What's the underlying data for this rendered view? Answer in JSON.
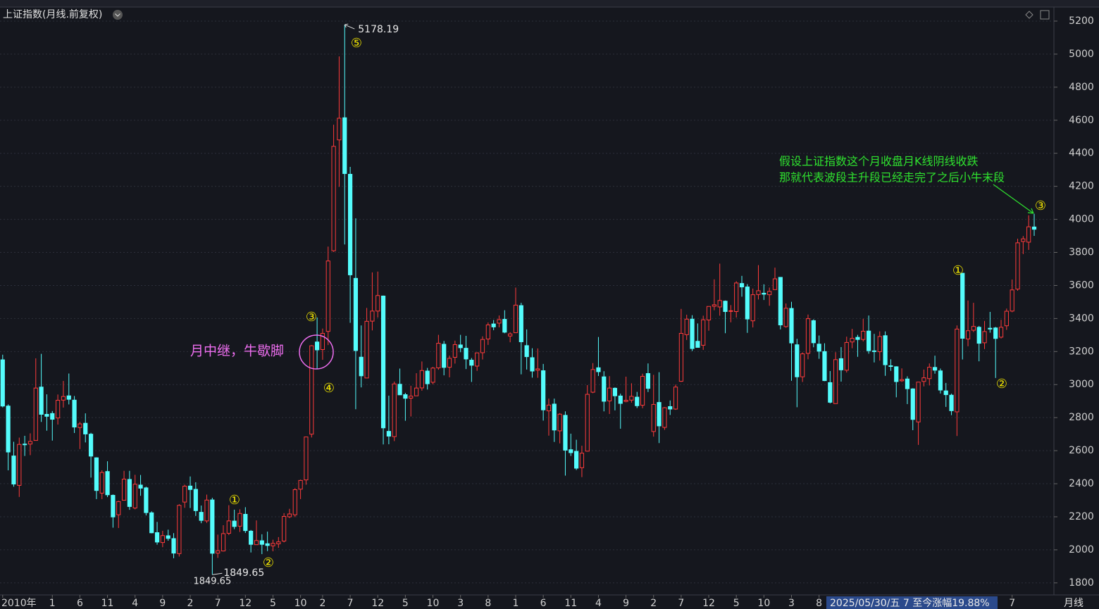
{
  "chart_data": {
    "type": "candlestick",
    "title": "上证指数(月线.前复权)",
    "period_label": "月线",
    "range_note": "2025/05/30/五 7 至今涨幅19.88%",
    "up_color": "#ff3b3b",
    "down_color": "#54fcfc",
    "ylim": [
      1727,
      5285
    ],
    "yticks": [
      1800,
      2000,
      2200,
      2400,
      2600,
      2800,
      3000,
      3200,
      3400,
      3600,
      3800,
      4000,
      4200,
      4400,
      4600,
      4800,
      5000,
      5200
    ],
    "grid": true,
    "xticks": [
      {
        "value": 0,
        "label": "2010年"
      },
      {
        "value": 9,
        "label": "1"
      },
      {
        "value": 14,
        "label": "6"
      },
      {
        "value": 19,
        "label": "11"
      },
      {
        "value": 24,
        "label": "4"
      },
      {
        "value": 29,
        "label": "9"
      },
      {
        "value": 34,
        "label": "2"
      },
      {
        "value": 39,
        "label": "7"
      },
      {
        "value": 44,
        "label": "12"
      },
      {
        "value": 49,
        "label": "5"
      },
      {
        "value": 54,
        "label": "10"
      },
      {
        "value": 58,
        "label": "2"
      },
      {
        "value": 63,
        "label": "7"
      },
      {
        "value": 68,
        "label": "12"
      },
      {
        "value": 73,
        "label": "5"
      },
      {
        "value": 78,
        "label": "10"
      },
      {
        "value": 83,
        "label": "3"
      },
      {
        "value": 88,
        "label": "8"
      },
      {
        "value": 93,
        "label": "1"
      },
      {
        "value": 98,
        "label": "6"
      },
      {
        "value": 103,
        "label": "11"
      },
      {
        "value": 108,
        "label": "4"
      },
      {
        "value": 113,
        "label": "9"
      },
      {
        "value": 118,
        "label": "2"
      },
      {
        "value": 123,
        "label": "7"
      },
      {
        "value": 128,
        "label": "12"
      },
      {
        "value": 133,
        "label": "5"
      },
      {
        "value": 138,
        "label": "10"
      },
      {
        "value": 143,
        "label": "3"
      },
      {
        "value": 148,
        "label": "8"
      },
      {
        "value": 183,
        "label": "7"
      }
    ],
    "max_marker": 5178.19,
    "min_marker": 1849.65,
    "annotations": [
      "⑤",
      "③",
      "④",
      "①",
      "②",
      "①",
      "②",
      "③",
      "月中继，牛歇脚",
      "假设上证指数这个月收盘月K线阴线收跌",
      "那就代表波段主升段已经走完了之后小牛末段"
    ],
    "ohlc": [
      [
        3150,
        3181,
        2862,
        2870
      ],
      [
        2870,
        2880,
        2481,
        2592
      ],
      [
        2568,
        2654,
        2382,
        2398
      ],
      [
        2390,
        2679,
        2320,
        2638
      ],
      [
        2640,
        2690,
        2568,
        2638
      ],
      [
        2640,
        2705,
        2573,
        2656
      ],
      [
        2662,
        3159,
        2661,
        2979
      ],
      [
        2985,
        3186,
        2774,
        2820
      ],
      [
        2820,
        2941,
        2721,
        2808
      ],
      [
        2825,
        2840,
        2661,
        2790
      ],
      [
        2798,
        2940,
        2758,
        2905
      ],
      [
        2906,
        3022,
        2861,
        2928
      ],
      [
        2932,
        3067,
        2880,
        2911
      ],
      [
        2906,
        2931,
        2707,
        2743
      ],
      [
        2740,
        2774,
        2610,
        2762
      ],
      [
        2766,
        2826,
        2650,
        2701
      ],
      [
        2700,
        2708,
        2437,
        2567
      ],
      [
        2557,
        2560,
        2307,
        2359
      ],
      [
        2343,
        2481,
        2307,
        2468
      ],
      [
        2474,
        2536,
        2319,
        2333
      ],
      [
        2330,
        2335,
        2134,
        2199
      ],
      [
        2212,
        2297,
        2132,
        2292
      ],
      [
        2300,
        2478,
        2300,
        2428
      ],
      [
        2426,
        2478,
        2242,
        2262
      ],
      [
        2253,
        2454,
        2245,
        2397
      ],
      [
        2392,
        2453,
        2327,
        2373
      ],
      [
        2375,
        2382,
        2208,
        2225
      ],
      [
        2224,
        2233,
        2100,
        2103
      ],
      [
        2104,
        2169,
        2031,
        2047
      ],
      [
        2044,
        2115,
        2016,
        2086
      ],
      [
        2085,
        2122,
        2055,
        2069
      ],
      [
        2068,
        2101,
        1949,
        1980
      ],
      [
        1977,
        2276,
        1959,
        2269
      ],
      [
        2289,
        2394,
        2254,
        2385
      ],
      [
        2386,
        2444,
        2253,
        2365
      ],
      [
        2366,
        2409,
        2205,
        2237
      ],
      [
        2227,
        2268,
        2161,
        2178
      ],
      [
        2175,
        2334,
        2163,
        2301
      ],
      [
        2302,
        2315,
        1849.65,
        1979
      ],
      [
        1980,
        2092,
        1951,
        1994
      ],
      [
        1993,
        2149,
        1990,
        2098
      ],
      [
        2100,
        2270,
        2089,
        2175
      ],
      [
        2174,
        2243,
        2125,
        2141
      ],
      [
        2143,
        2245,
        2108,
        2220
      ],
      [
        2215,
        2258,
        2102,
        2116
      ],
      [
        2113,
        2120,
        1984,
        2033
      ],
      [
        2031,
        2178,
        2030,
        2056
      ],
      [
        2055,
        2094,
        1974,
        2033
      ],
      [
        2037,
        2110,
        1992,
        2026
      ],
      [
        2024,
        2061,
        1991,
        2039
      ],
      [
        2036,
        2077,
        2012,
        2048
      ],
      [
        2053,
        2222,
        2045,
        2202
      ],
      [
        2200,
        2248,
        2192,
        2217
      ],
      [
        2212,
        2373,
        2198,
        2364
      ],
      [
        2367,
        2425,
        2307,
        2420
      ],
      [
        2423,
        2683,
        2394,
        2683
      ],
      [
        2700,
        3239,
        2680,
        3235
      ],
      [
        3258,
        3406,
        3095,
        3210
      ],
      [
        3212,
        3339,
        3150,
        3310
      ],
      [
        3322,
        3835,
        3239,
        3748
      ],
      [
        3810,
        4573,
        3803,
        4442
      ],
      [
        4481,
        4986,
        4197,
        4612
      ],
      [
        4615,
        5178.19,
        3848,
        4277
      ],
      [
        4273,
        4318,
        3374,
        3664
      ],
      [
        3643,
        4006,
        2851,
        3206
      ],
      [
        3166,
        3358,
        2983,
        3053
      ],
      [
        3040,
        3464,
        3039,
        3383
      ],
      [
        3384,
        3679,
        3328,
        3445
      ],
      [
        3445,
        3684,
        3406,
        3539
      ],
      [
        3536,
        3539,
        2638,
        2738
      ],
      [
        2717,
        2933,
        2639,
        2688
      ],
      [
        2685,
        3018,
        2658,
        3004
      ],
      [
        3002,
        3097,
        2943,
        2938
      ],
      [
        2939,
        2950,
        2781,
        2917
      ],
      [
        2918,
        2993,
        2807,
        2930
      ],
      [
        2932,
        3069,
        2931,
        2979
      ],
      [
        2980,
        3140,
        2963,
        3085
      ],
      [
        3082,
        3101,
        2970,
        3005
      ],
      [
        3014,
        3107,
        3002,
        3100
      ],
      [
        3101,
        3301,
        3090,
        3250
      ],
      [
        3244,
        3264,
        3056,
        3104
      ],
      [
        3105,
        3175,
        3044,
        3159
      ],
      [
        3165,
        3266,
        3127,
        3242
      ],
      [
        3240,
        3301,
        3196,
        3223
      ],
      [
        3220,
        3295,
        3094,
        3155
      ],
      [
        3148,
        3161,
        3016,
        3117
      ],
      [
        3112,
        3194,
        3083,
        3192
      ],
      [
        3193,
        3292,
        3152,
        3273
      ],
      [
        3276,
        3376,
        3240,
        3361
      ],
      [
        3367,
        3391,
        3329,
        3349
      ],
      [
        3372,
        3418,
        3347,
        3393
      ],
      [
        3395,
        3450,
        3311,
        3317
      ],
      [
        3294,
        3317,
        3256,
        3307
      ],
      [
        3314,
        3587,
        3314,
        3481
      ],
      [
        3478,
        3495,
        3062,
        3259
      ],
      [
        3236,
        3334,
        3091,
        3169
      ],
      [
        3163,
        3220,
        3042,
        3082
      ],
      [
        3087,
        3219,
        3041,
        3095
      ],
      [
        3084,
        3125,
        2782,
        2847
      ],
      [
        2841,
        2915,
        2691,
        2876
      ],
      [
        2882,
        2915,
        2653,
        2725
      ],
      [
        2720,
        2827,
        2644,
        2821
      ],
      [
        2814,
        2838,
        2449,
        2603
      ],
      [
        2606,
        2703,
        2568,
        2588
      ],
      [
        2596,
        2666,
        2483,
        2494
      ],
      [
        2497,
        2630,
        2440,
        2585
      ],
      [
        2597,
        2997,
        2595,
        2941
      ],
      [
        2954,
        3130,
        2948,
        3091
      ],
      [
        3102,
        3288,
        3052,
        3078
      ],
      [
        3047,
        3081,
        2838,
        2899
      ],
      [
        2901,
        3051,
        2822,
        2979
      ],
      [
        2978,
        2983,
        2844,
        2932
      ],
      [
        2931,
        2945,
        2733,
        2886
      ],
      [
        2898,
        3048,
        2893,
        2905
      ],
      [
        2906,
        3008,
        2891,
        2929
      ],
      [
        2924,
        2956,
        2858,
        2872
      ],
      [
        2875,
        3066,
        2857,
        3050
      ],
      [
        3067,
        3128,
        2955,
        2977
      ],
      [
        2716,
        3059,
        2685,
        2880
      ],
      [
        2892,
        3075,
        2646,
        2750
      ],
      [
        2741,
        2864,
        2726,
        2860
      ],
      [
        2867,
        2904,
        2816,
        2852
      ],
      [
        2852,
        3000,
        2847,
        2985
      ],
      [
        3020,
        3458,
        3016,
        3310
      ],
      [
        3302,
        3423,
        3270,
        3396
      ],
      [
        3396,
        3420,
        3203,
        3218
      ],
      [
        3262,
        3370,
        3240,
        3225
      ],
      [
        3238,
        3417,
        3210,
        3392
      ],
      [
        3391,
        3474,
        3326,
        3473
      ],
      [
        3474,
        3637,
        3450,
        3483
      ],
      [
        3470,
        3732,
        3417,
        3509
      ],
      [
        3505,
        3509,
        3311,
        3442
      ],
      [
        3445,
        3481,
        3377,
        3447
      ],
      [
        3442,
        3626,
        3406,
        3615
      ],
      [
        3612,
        3658,
        3532,
        3591
      ],
      [
        3591,
        3608,
        3313,
        3397
      ],
      [
        3386,
        3581,
        3346,
        3544
      ],
      [
        3545,
        3723,
        3515,
        3568
      ],
      [
        3553,
        3607,
        3512,
        3547
      ],
      [
        3544,
        3587,
        3477,
        3564
      ],
      [
        3575,
        3708,
        3573,
        3640
      ],
      [
        3649,
        3651,
        3334,
        3361
      ],
      [
        3351,
        3491,
        3344,
        3462
      ],
      [
        3461,
        3501,
        3023,
        3252
      ],
      [
        3241,
        3277,
        2863,
        3047
      ],
      [
        3047,
        3195,
        3016,
        3186
      ],
      [
        3189,
        3424,
        3153,
        3399
      ],
      [
        3387,
        3395,
        3226,
        3253
      ],
      [
        3245,
        3297,
        3156,
        3202
      ],
      [
        3200,
        3250,
        3021,
        3024
      ],
      [
        3012,
        3082,
        2886,
        2893
      ],
      [
        2885,
        3196,
        2885,
        3151
      ],
      [
        3157,
        3227,
        3018,
        3089
      ],
      [
        3087,
        3290,
        3073,
        3255
      ],
      [
        3258,
        3337,
        3220,
        3280
      ],
      [
        3286,
        3301,
        3168,
        3273
      ],
      [
        3273,
        3398,
        3261,
        3323
      ],
      [
        3324,
        3418,
        3187,
        3205
      ],
      [
        3204,
        3307,
        3134,
        3202
      ],
      [
        3199,
        3322,
        3145,
        3291
      ],
      [
        3296,
        3322,
        3053,
        3120
      ],
      [
        3114,
        3153,
        3083,
        3110
      ],
      [
        3108,
        3111,
        2923,
        3018
      ],
      [
        3023,
        3098,
        3016,
        3030
      ],
      [
        3034,
        3050,
        2882,
        2975
      ],
      [
        2974,
        2978,
        2724,
        2789
      ],
      [
        2774,
        3015,
        2635,
        3015
      ],
      [
        3019,
        3091,
        2989,
        3041
      ],
      [
        3036,
        3128,
        2995,
        3105
      ],
      [
        3104,
        3175,
        3066,
        3087
      ],
      [
        3083,
        3097,
        2946,
        2967
      ],
      [
        2962,
        3010,
        2865,
        2939
      ],
      [
        2936,
        2945,
        2815,
        2842
      ],
      [
        2835,
        3358,
        2689,
        3336
      ],
      [
        3674,
        3674,
        3152,
        3280
      ],
      [
        3276,
        3509,
        3232,
        3326
      ],
      [
        3329,
        3495,
        3318,
        3352
      ],
      [
        3347,
        3355,
        3141,
        3250
      ],
      [
        3253,
        3385,
        3215,
        3321
      ],
      [
        3341,
        3440,
        3314,
        3336
      ],
      [
        3343,
        3349,
        3040,
        3279
      ],
      [
        3287,
        3392,
        3279,
        3347
      ],
      [
        3356,
        3460,
        3331,
        3444
      ],
      [
        3445,
        3636,
        3438,
        3573
      ],
      [
        3578,
        3883,
        3568,
        3858
      ],
      [
        3866,
        3899,
        3790,
        3882
      ],
      [
        3862,
        4025,
        3815,
        3955
      ],
      [
        3954,
        4034,
        3900,
        3940
      ]
    ]
  }
}
